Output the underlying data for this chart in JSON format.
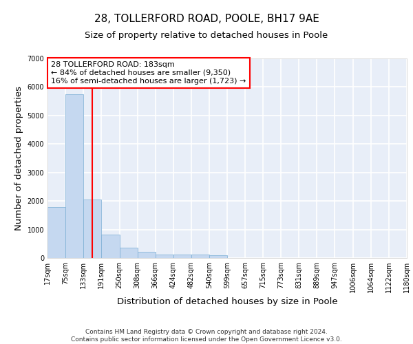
{
  "title_line1": "28, TOLLERFORD ROAD, POOLE, BH17 9AE",
  "title_line2": "Size of property relative to detached houses in Poole",
  "xlabel": "Distribution of detached houses by size in Poole",
  "ylabel": "Number of detached properties",
  "bar_color": "#c5d8f0",
  "bar_edge_color": "#7aadd4",
  "background_color": "#e8eef8",
  "grid_color": "#ffffff",
  "property_size_bin": 2,
  "property_line_color": "red",
  "annotation_text": "28 TOLLERFORD ROAD: 183sqm\n← 84% of detached houses are smaller (9,350)\n16% of semi-detached houses are larger (1,723) →",
  "annotation_box_color": "white",
  "annotation_box_edge_color": "red",
  "bin_labels": [
    "17sqm",
    "75sqm",
    "133sqm",
    "191sqm",
    "250sqm",
    "308sqm",
    "366sqm",
    "424sqm",
    "482sqm",
    "540sqm",
    "599sqm",
    "657sqm",
    "715sqm",
    "773sqm",
    "831sqm",
    "889sqm",
    "947sqm",
    "1006sqm",
    "1064sqm",
    "1122sqm",
    "1180sqm"
  ],
  "bar_heights": [
    1780,
    5750,
    2060,
    810,
    355,
    210,
    130,
    115,
    110,
    95,
    0,
    0,
    0,
    0,
    0,
    0,
    0,
    0,
    0,
    0
  ],
  "bin_edges": [
    17,
    75,
    133,
    191,
    250,
    308,
    366,
    424,
    482,
    540,
    599,
    657,
    715,
    773,
    831,
    889,
    947,
    1006,
    1064,
    1122,
    1180
  ],
  "ylim": [
    0,
    7000
  ],
  "yticks": [
    0,
    1000,
    2000,
    3000,
    4000,
    5000,
    6000,
    7000
  ],
  "red_line_x": 162,
  "footer_text": "Contains HM Land Registry data © Crown copyright and database right 2024.\nContains public sector information licensed under the Open Government Licence v3.0.",
  "title_fontsize": 11,
  "subtitle_fontsize": 9.5,
  "axis_label_fontsize": 9.5,
  "tick_fontsize": 7,
  "footer_fontsize": 6.5,
  "annot_fontsize": 8
}
